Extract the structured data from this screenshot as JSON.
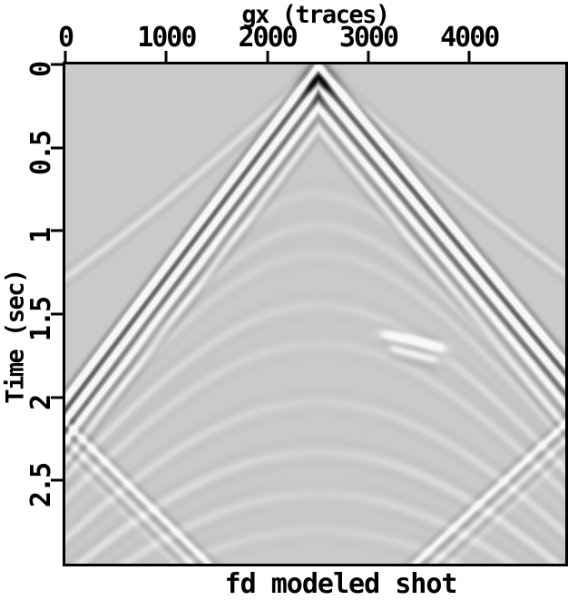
{
  "figure": {
    "bottom_title": "fd modeled shot"
  },
  "axes": {
    "x": {
      "title": "gx (traces)",
      "ticks": [
        "0",
        "1000",
        "2000",
        "3000",
        "4000"
      ],
      "tick_values": [
        0,
        1000,
        2000,
        3000,
        4000
      ],
      "range": [
        0,
        4950
      ],
      "position": "top"
    },
    "y": {
      "title": "Time (sec)",
      "ticks": [
        "0",
        "0.5",
        "1",
        "1.5",
        "2",
        "2.5"
      ],
      "tick_values": [
        0,
        0.5,
        1,
        1.5,
        2,
        2.5
      ],
      "range": [
        0,
        3.0
      ],
      "position": "left",
      "direction": "down"
    }
  },
  "colors": {
    "page_background": "#ffffff",
    "plot_background": "#cacaca",
    "ink": "#000000",
    "event_dark": "#141414",
    "event_light": "#f5f5f5"
  },
  "chart_data": {
    "type": "heatmap",
    "variant": "seismic-shot-gather",
    "title": "fd modeled shot",
    "xlabel": "gx (traces)",
    "ylabel": "Time (sec)",
    "xlim": [
      0,
      4950
    ],
    "ylim": [
      0,
      3.0
    ],
    "xticks": [
      0,
      1000,
      2000,
      3000,
      4000
    ],
    "yticks": [
      0,
      0.5,
      1,
      1.5,
      2,
      2.5
    ],
    "grid": false,
    "legend": "none",
    "background_gray": "#cacaca",
    "gain": 140,
    "source_trace": 2505,
    "description": "Finite-difference modeled shot record: source at ~trace 2505 at t=0; strong direct wave forms a dark V (apex at top center, reaching side edges near t=1.8-2.0 s); faint nested hyperbolic reflections beneath; side-boundary reflection diagonals create bead-like crossing patterns near t=2.5 s at traces ~700 and ~4250; small diffraction smudge near trace 3450 at t=1.65 s.",
    "wavelets": {
      "direct": [
        [
          -0.062,
          0.25
        ],
        [
          0,
          -1.0
        ],
        [
          0.062,
          0.62
        ],
        [
          0.124,
          -0.8
        ],
        [
          0.186,
          0.5
        ],
        [
          0.248,
          -0.45
        ],
        [
          0.31,
          0.26
        ],
        [
          0.372,
          -0.18
        ],
        [
          0.434,
          0.1
        ]
      ],
      "simple": [
        [
          -0.055,
          0.4
        ],
        [
          0,
          -1.0
        ],
        [
          0.055,
          0.4
        ]
      ],
      "mirror": [
        [
          -0.05,
          0.35
        ],
        [
          0,
          -1.0
        ],
        [
          0.05,
          0.5
        ],
        [
          0.1,
          -0.55
        ],
        [
          0.15,
          0.3
        ],
        [
          0.2,
          -0.22
        ]
      ],
      "lens": [
        [
          -0.045,
          0.15
        ],
        [
          0,
          -1.0
        ],
        [
          0.05,
          0.3
        ]
      ]
    },
    "events": [
      {
        "kind": "vline",
        "name": "direct-wave",
        "t0": 0.01,
        "slow_left": 0.0008,
        "slow_right": 0.00073,
        "amp": -1.25,
        "sig": 0.027,
        "wavelet": "direct"
      },
      {
        "kind": "blob",
        "name": "source-apex",
        "cx": 2505,
        "ct": 0.12,
        "sx": 140,
        "st": 0.09,
        "amp": -0.85
      },
      {
        "kind": "firstbreak",
        "name": "first-break",
        "t0": 0.01,
        "slow": 0.00058,
        "curv": 0.25,
        "amp": -0.16,
        "sig": 0.022,
        "wavelet": "simple"
      },
      {
        "kind": "hyper",
        "name": "reflection-1",
        "t0": 0.78,
        "v": 1250,
        "amp": -0.14,
        "sig": 0.035,
        "wavelet": "simple"
      },
      {
        "kind": "hyper",
        "name": "reflection-2",
        "t0": 0.97,
        "v": 1250,
        "amp": -0.16,
        "sig": 0.035,
        "wavelet": "simple"
      },
      {
        "kind": "hyper",
        "name": "reflection-3",
        "t0": 1.14,
        "v": 1250,
        "amp": -0.13,
        "sig": 0.035,
        "wavelet": "simple"
      },
      {
        "kind": "hyper",
        "name": "reflection-4",
        "t0": 1.45,
        "v": 1250,
        "amp": -0.17,
        "sig": 0.035,
        "wavelet": "simple"
      },
      {
        "kind": "hyper",
        "name": "reflection-5",
        "t0": 1.68,
        "v": 1250,
        "amp": -0.14,
        "sig": 0.035,
        "wavelet": "simple"
      },
      {
        "kind": "hyper",
        "name": "reflection-6",
        "t0": 2.03,
        "v": 1250,
        "amp": -0.16,
        "sig": 0.035,
        "wavelet": "simple"
      },
      {
        "kind": "hyper",
        "name": "reflection-7",
        "t0": 2.33,
        "v": 1250,
        "amp": -0.2,
        "sig": 0.035,
        "wavelet": "simple"
      },
      {
        "kind": "hyper",
        "name": "reflection-8",
        "t0": 2.58,
        "v": 1250,
        "amp": -0.17,
        "sig": 0.035,
        "wavelet": "simple"
      },
      {
        "kind": "hyper",
        "name": "reflection-9",
        "t0": 2.8,
        "v": 1250,
        "amp": -0.14,
        "sig": 0.035,
        "wavelet": "simple"
      },
      {
        "kind": "line",
        "name": "boundary-reflection-left",
        "x1": 0,
        "t1": 2.15,
        "x2": 1500,
        "t2": 3.05,
        "amp": -0.4,
        "sig": 0.024,
        "wavelet": "mirror"
      },
      {
        "kind": "line",
        "name": "boundary-reflection-right",
        "x1": 4950,
        "t1": 2.16,
        "x2": 3430,
        "t2": 3.02,
        "amp": -0.4,
        "sig": 0.024,
        "wavelet": "mirror"
      },
      {
        "kind": "seg",
        "name": "diffraction-upper",
        "x1": 3180,
        "t1": 1.625,
        "x2": 3720,
        "t2": 1.7,
        "amp": -0.55,
        "sig": 0.03,
        "wavelet": "lens"
      },
      {
        "kind": "seg",
        "name": "diffraction-lower",
        "x1": 3240,
        "t1": 1.705,
        "x2": 3660,
        "t2": 1.77,
        "amp": -0.38,
        "sig": 0.028,
        "wavelet": "lens"
      }
    ]
  }
}
